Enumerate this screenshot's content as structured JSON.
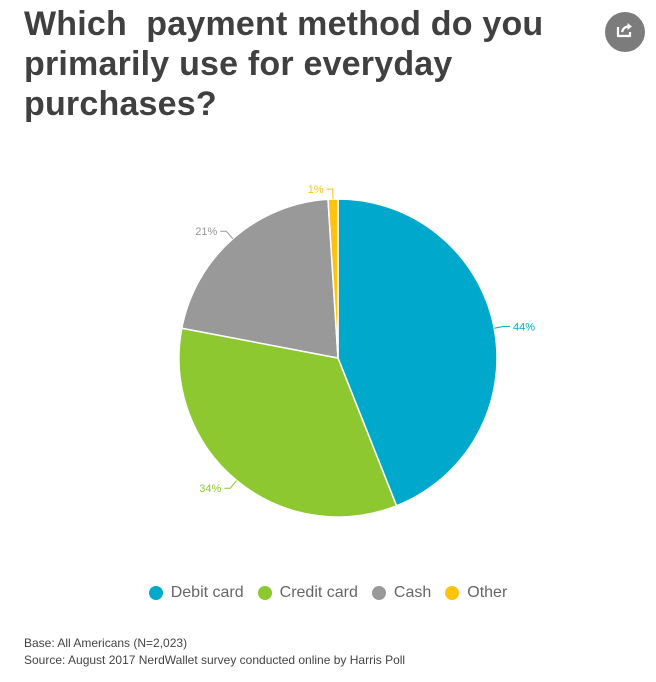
{
  "title": "Which  payment method do you primarily use for everyday purchases?",
  "share_button": {
    "icon": "share-icon"
  },
  "colors": {
    "debit": "#00A9CC",
    "credit": "#8DC830",
    "cash": "#999999",
    "other": "#FFC20E"
  },
  "chart_data": {
    "type": "pie",
    "title": "Which  payment method do you primarily use for everyday purchases?",
    "categories": [
      "Debit card",
      "Credit card",
      "Cash",
      "Other"
    ],
    "values": [
      44,
      34,
      21,
      1
    ],
    "labels": [
      "44%",
      "34%",
      "21%",
      "1%"
    ],
    "colors": [
      "#00A9CC",
      "#8DC830",
      "#999999",
      "#FFC20E"
    ],
    "legend_position": "bottom"
  },
  "legend": {
    "items": [
      {
        "label": "Debit card"
      },
      {
        "label": "Credit card"
      },
      {
        "label": "Cash"
      },
      {
        "label": "Other"
      }
    ]
  },
  "footer": {
    "base": "Base: All Americans (N=2,023)",
    "source": "Source: August 2017 NerdWallet survey conducted online by Harris Poll"
  }
}
